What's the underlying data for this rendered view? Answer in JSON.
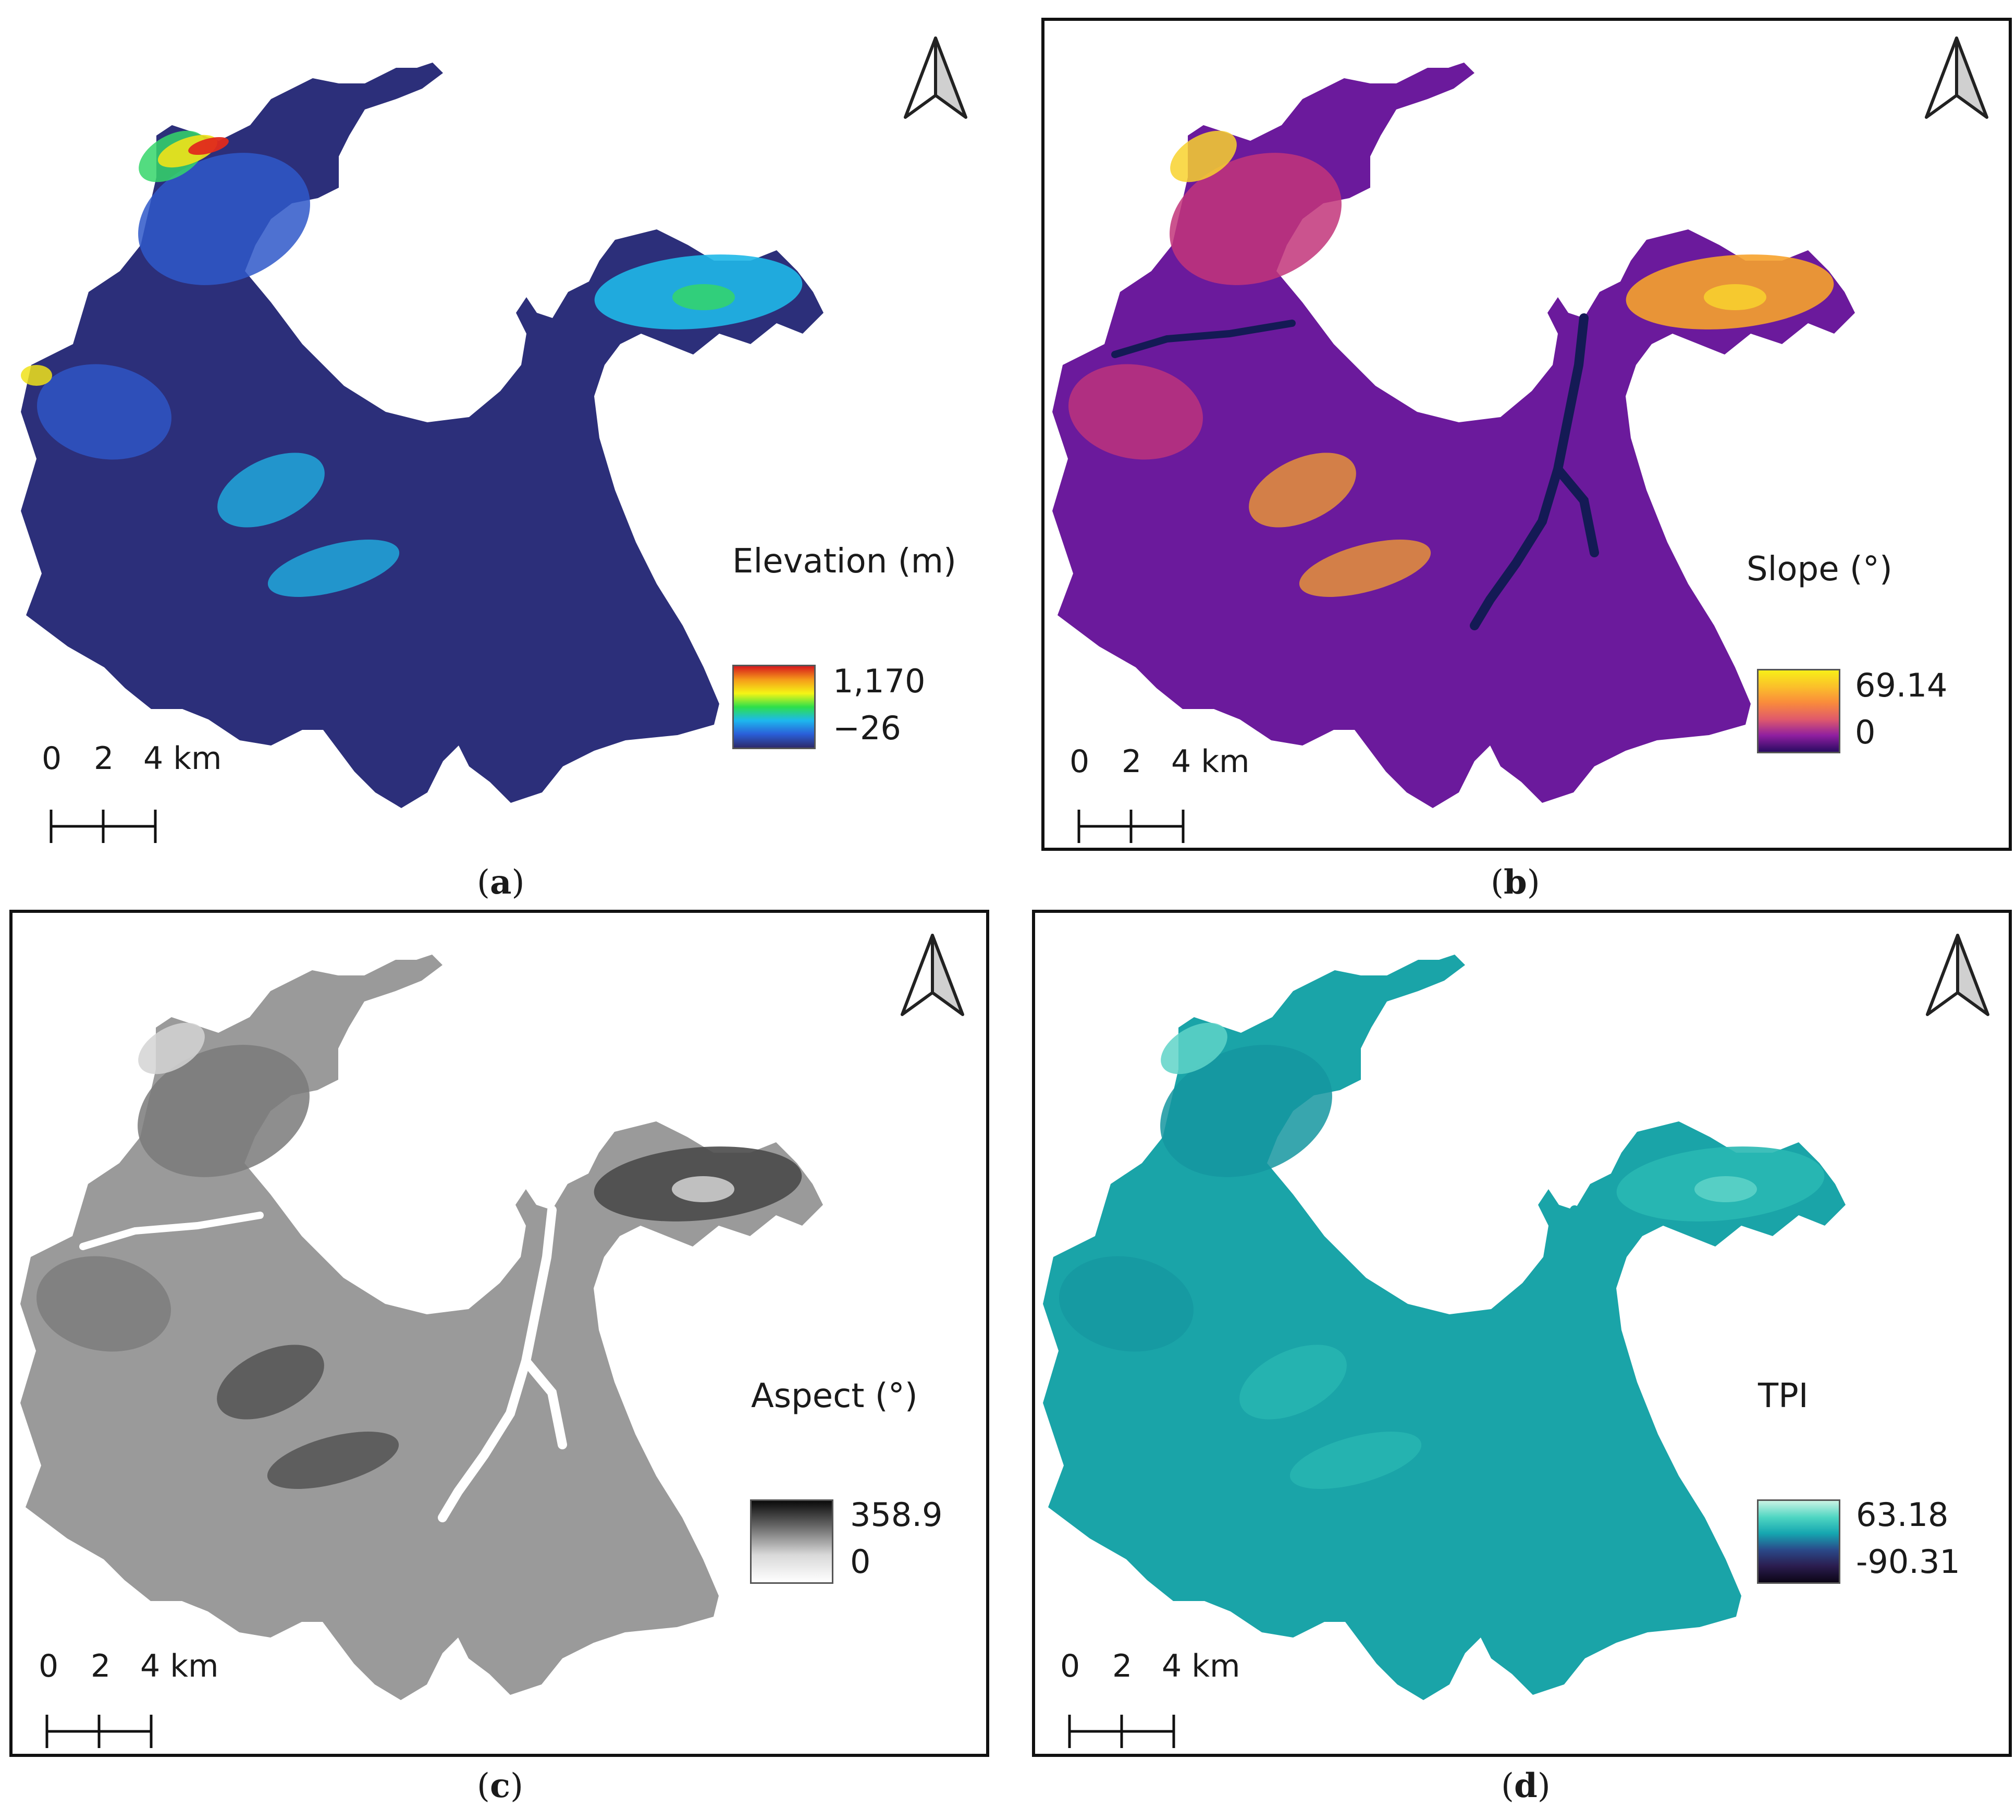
{
  "panels": [
    {
      "id": "a",
      "caption_letter": "a",
      "legend_title": "Elevation (m)",
      "max_label": "1,170",
      "min_label": "−26",
      "ramp_colors": [
        "#d7191c",
        "#f59c1a",
        "#f5f515",
        "#2ee04a",
        "#1db8ee",
        "#2a5fd9",
        "#2d2a6b"
      ],
      "fill_colors": {
        "low": "#2c2f7a",
        "mid": "#2f58c9",
        "high": "#1fb8e8",
        "peak": "#35d66a",
        "top": "#f0e21a",
        "summit": "#e02a1c"
      }
    },
    {
      "id": "b",
      "caption_letter": "b",
      "legend_title": "Slope (°)",
      "max_label": "69.14",
      "min_label": "0",
      "ramp_colors": [
        "#f7ef18",
        "#fbc02a",
        "#f98a3c",
        "#e05a6b",
        "#8f1fa0",
        "#2a0b62"
      ],
      "fill_colors": {
        "low": "#6b1a9c",
        "mid": "#c2357a",
        "high": "#f6a22c",
        "peak": "#f8d22e",
        "water": "#141a55"
      }
    },
    {
      "id": "c",
      "caption_letter": "c",
      "legend_title": "Aspect (°)",
      "max_label": "358.9",
      "min_label": "0",
      "ramp_colors": [
        "#0a0a0a",
        "#6f6f6f",
        "#d9d9d9",
        "#ffffff"
      ],
      "fill_colors": {
        "low": "#9a9a9a",
        "mid": "#7a7a7a",
        "high": "#4a4a4a",
        "peak": "#d4d4d4",
        "water": "#ffffff"
      }
    },
    {
      "id": "d",
      "caption_letter": "d",
      "legend_title": "TPI",
      "max_label": "63.18",
      "min_label": "-90.31",
      "ramp_colors": [
        "#c9f2e4",
        "#4fd6c2",
        "#15a6b0",
        "#2a4a8a",
        "#2b1d4f",
        "#0c0516"
      ],
      "fill_colors": {
        "low": "#1aa4a8",
        "mid": "#1597a0",
        "high": "#29b8b3",
        "peak": "#5fd4c8",
        "water": "#1aa4a8"
      }
    }
  ],
  "scale_bar": {
    "labels": [
      "0",
      "2",
      "4 km"
    ]
  },
  "north_arrow": {
    "icon": "north-arrow-icon"
  }
}
